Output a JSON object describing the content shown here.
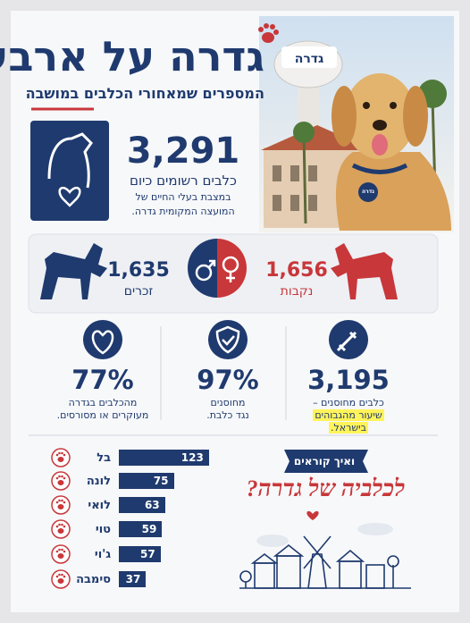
{
  "header": {
    "title": "גדרה על ארבע",
    "subtitle": "המספרים שמאחורי הכלבים במושבה"
  },
  "photo": {
    "tower_sign": "גדרה",
    "collar_tag": "גדרה"
  },
  "registered": {
    "number": "3,291",
    "label": "כלבים רשומים כיום",
    "note_lines": [
      "במצבת בעלי החיים של",
      "המועצה המקומית גדרה."
    ]
  },
  "gender": {
    "male": {
      "number": "1,635",
      "label": "זכרים"
    },
    "female": {
      "number": "1,656",
      "label": "נקבות"
    }
  },
  "stats": [
    {
      "number": "3,195",
      "lines": [
        "כלבים מחוסנים –",
        "שיעור מהגבוהים",
        "בישראל."
      ]
    },
    {
      "number": "97%",
      "lines": [
        "מחוסנים",
        "נגד כלבת."
      ]
    },
    {
      "number": "77%",
      "lines": [
        "מהכלבים בגדרה",
        "מעוקרים או מסורסים."
      ]
    }
  ],
  "names_heading": {
    "ribbon": "ואיך קוראים",
    "script": "לכלביה של גדרה?"
  },
  "chart_data": {
    "type": "bar",
    "categories": [
      "בל",
      "לונה",
      "לואי",
      "טוי",
      "ג'וי",
      "סימבה"
    ],
    "values": [
      123,
      75,
      63,
      59,
      57,
      37
    ],
    "color": "#1f3a6e"
  }
}
